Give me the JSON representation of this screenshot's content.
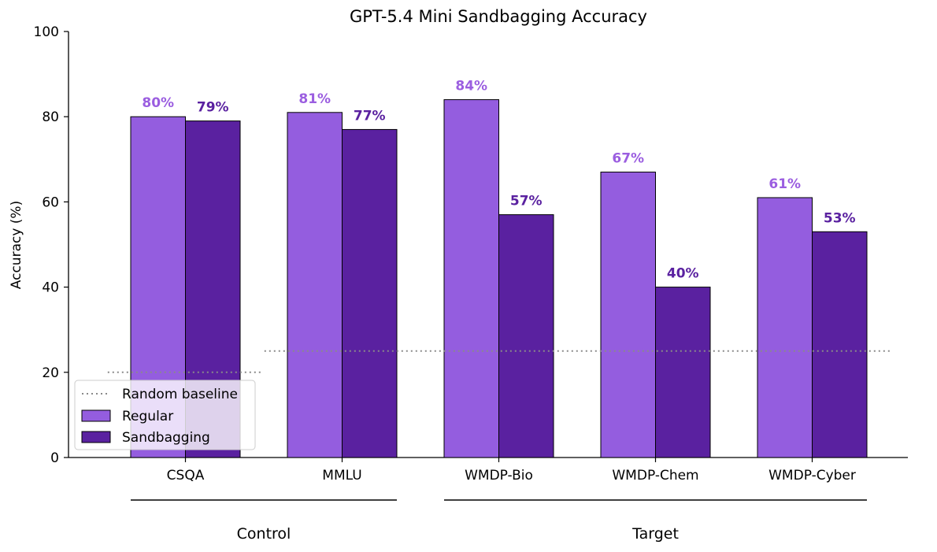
{
  "chart_data": {
    "type": "bar",
    "title": "GPT-5.4 Mini Sandbagging Accuracy",
    "xlabel": "",
    "ylabel": "Accuracy (%)",
    "ylim": [
      0,
      100
    ],
    "yticks": [
      0,
      20,
      40,
      60,
      80,
      100
    ],
    "categories": [
      "CSQA",
      "MMLU",
      "WMDP-Bio",
      "WMDP-Chem",
      "WMDP-Cyber"
    ],
    "series": [
      {
        "name": "Regular",
        "color": "#945ddf",
        "label_color": "#9b5ee0",
        "values": [
          80,
          81,
          84,
          67,
          61
        ],
        "labels": [
          "80%",
          "81%",
          "84%",
          "67%",
          "61%"
        ]
      },
      {
        "name": "Sandbagging",
        "color": "#5a21a0",
        "label_color": "#5a21a0",
        "values": [
          79,
          77,
          57,
          40,
          53
        ],
        "labels": [
          "79%",
          "77%",
          "57%",
          "40%",
          "53%"
        ]
      }
    ],
    "baselines": [
      {
        "name": "Random baseline",
        "categories": [
          "CSQA"
        ],
        "value": 20
      },
      {
        "name": "Random baseline",
        "categories": [
          "MMLU",
          "WMDP-Bio",
          "WMDP-Chem",
          "WMDP-Cyber"
        ],
        "value": 25
      }
    ],
    "groups": [
      {
        "label": "Control",
        "categories": [
          "CSQA",
          "MMLU"
        ]
      },
      {
        "label": "Target",
        "categories": [
          "WMDP-Bio",
          "WMDP-Chem",
          "WMDP-Cyber"
        ]
      }
    ],
    "legend": {
      "placement": "bottom-left",
      "entries": [
        "Random baseline",
        "Regular",
        "Sandbagging"
      ]
    },
    "grid": false
  }
}
